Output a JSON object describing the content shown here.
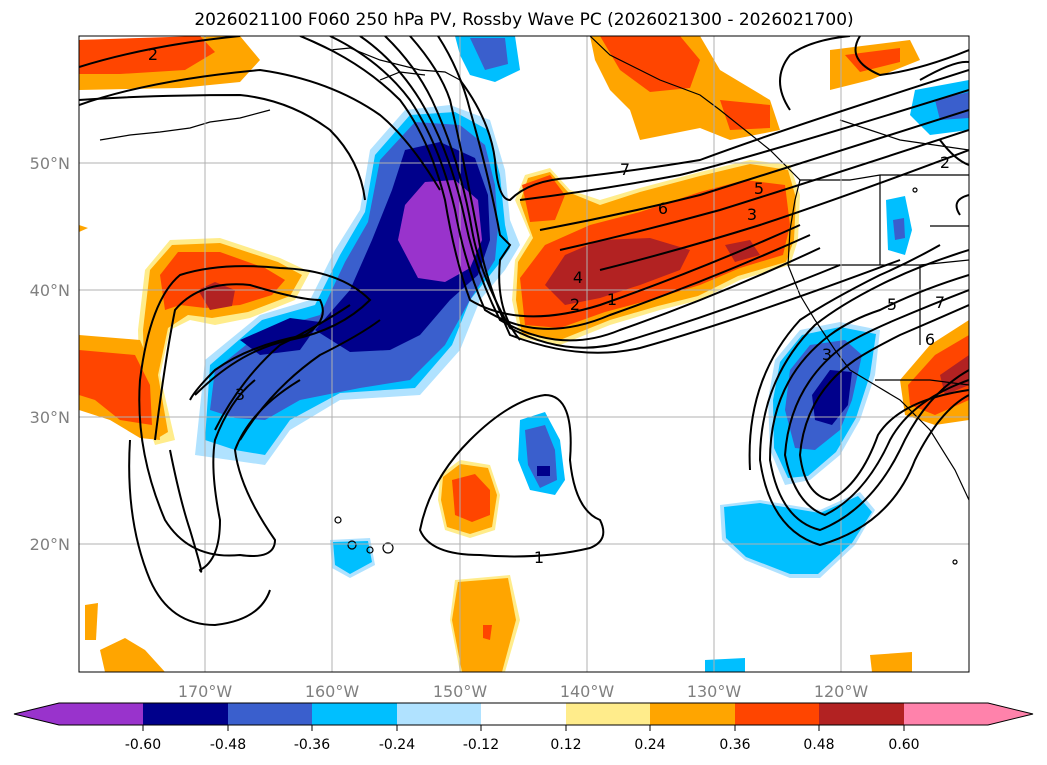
{
  "title": "2026021100 F060 250 hPa PV, Rossby Wave PC (2026021300 - 2026021700)",
  "map": {
    "lat_ticks": [
      "50°N",
      "40°N",
      "30°N",
      "20°N"
    ],
    "lon_ticks": [
      "170°W",
      "160°W",
      "150°W",
      "140°W",
      "130°W",
      "120°W"
    ]
  },
  "colorbar": {
    "colors": [
      "#9933cc",
      "#00008b",
      "#3a5fcd",
      "#00bfff",
      "#b0e2ff",
      "#ffffff",
      "#ffec8b",
      "#ffa500",
      "#ff4500",
      "#b22222",
      "#ff82ab"
    ],
    "ticks": [
      "-0.60",
      "-0.48",
      "-0.36",
      "-0.24",
      "-0.12",
      "0.12",
      "0.24",
      "0.36",
      "0.48",
      "0.60"
    ]
  },
  "contour_labels": [
    "2",
    "7",
    "6",
    "5",
    "3",
    "4",
    "2",
    "1",
    "3",
    "1",
    "5",
    "7",
    "6",
    "2",
    "3"
  ]
}
